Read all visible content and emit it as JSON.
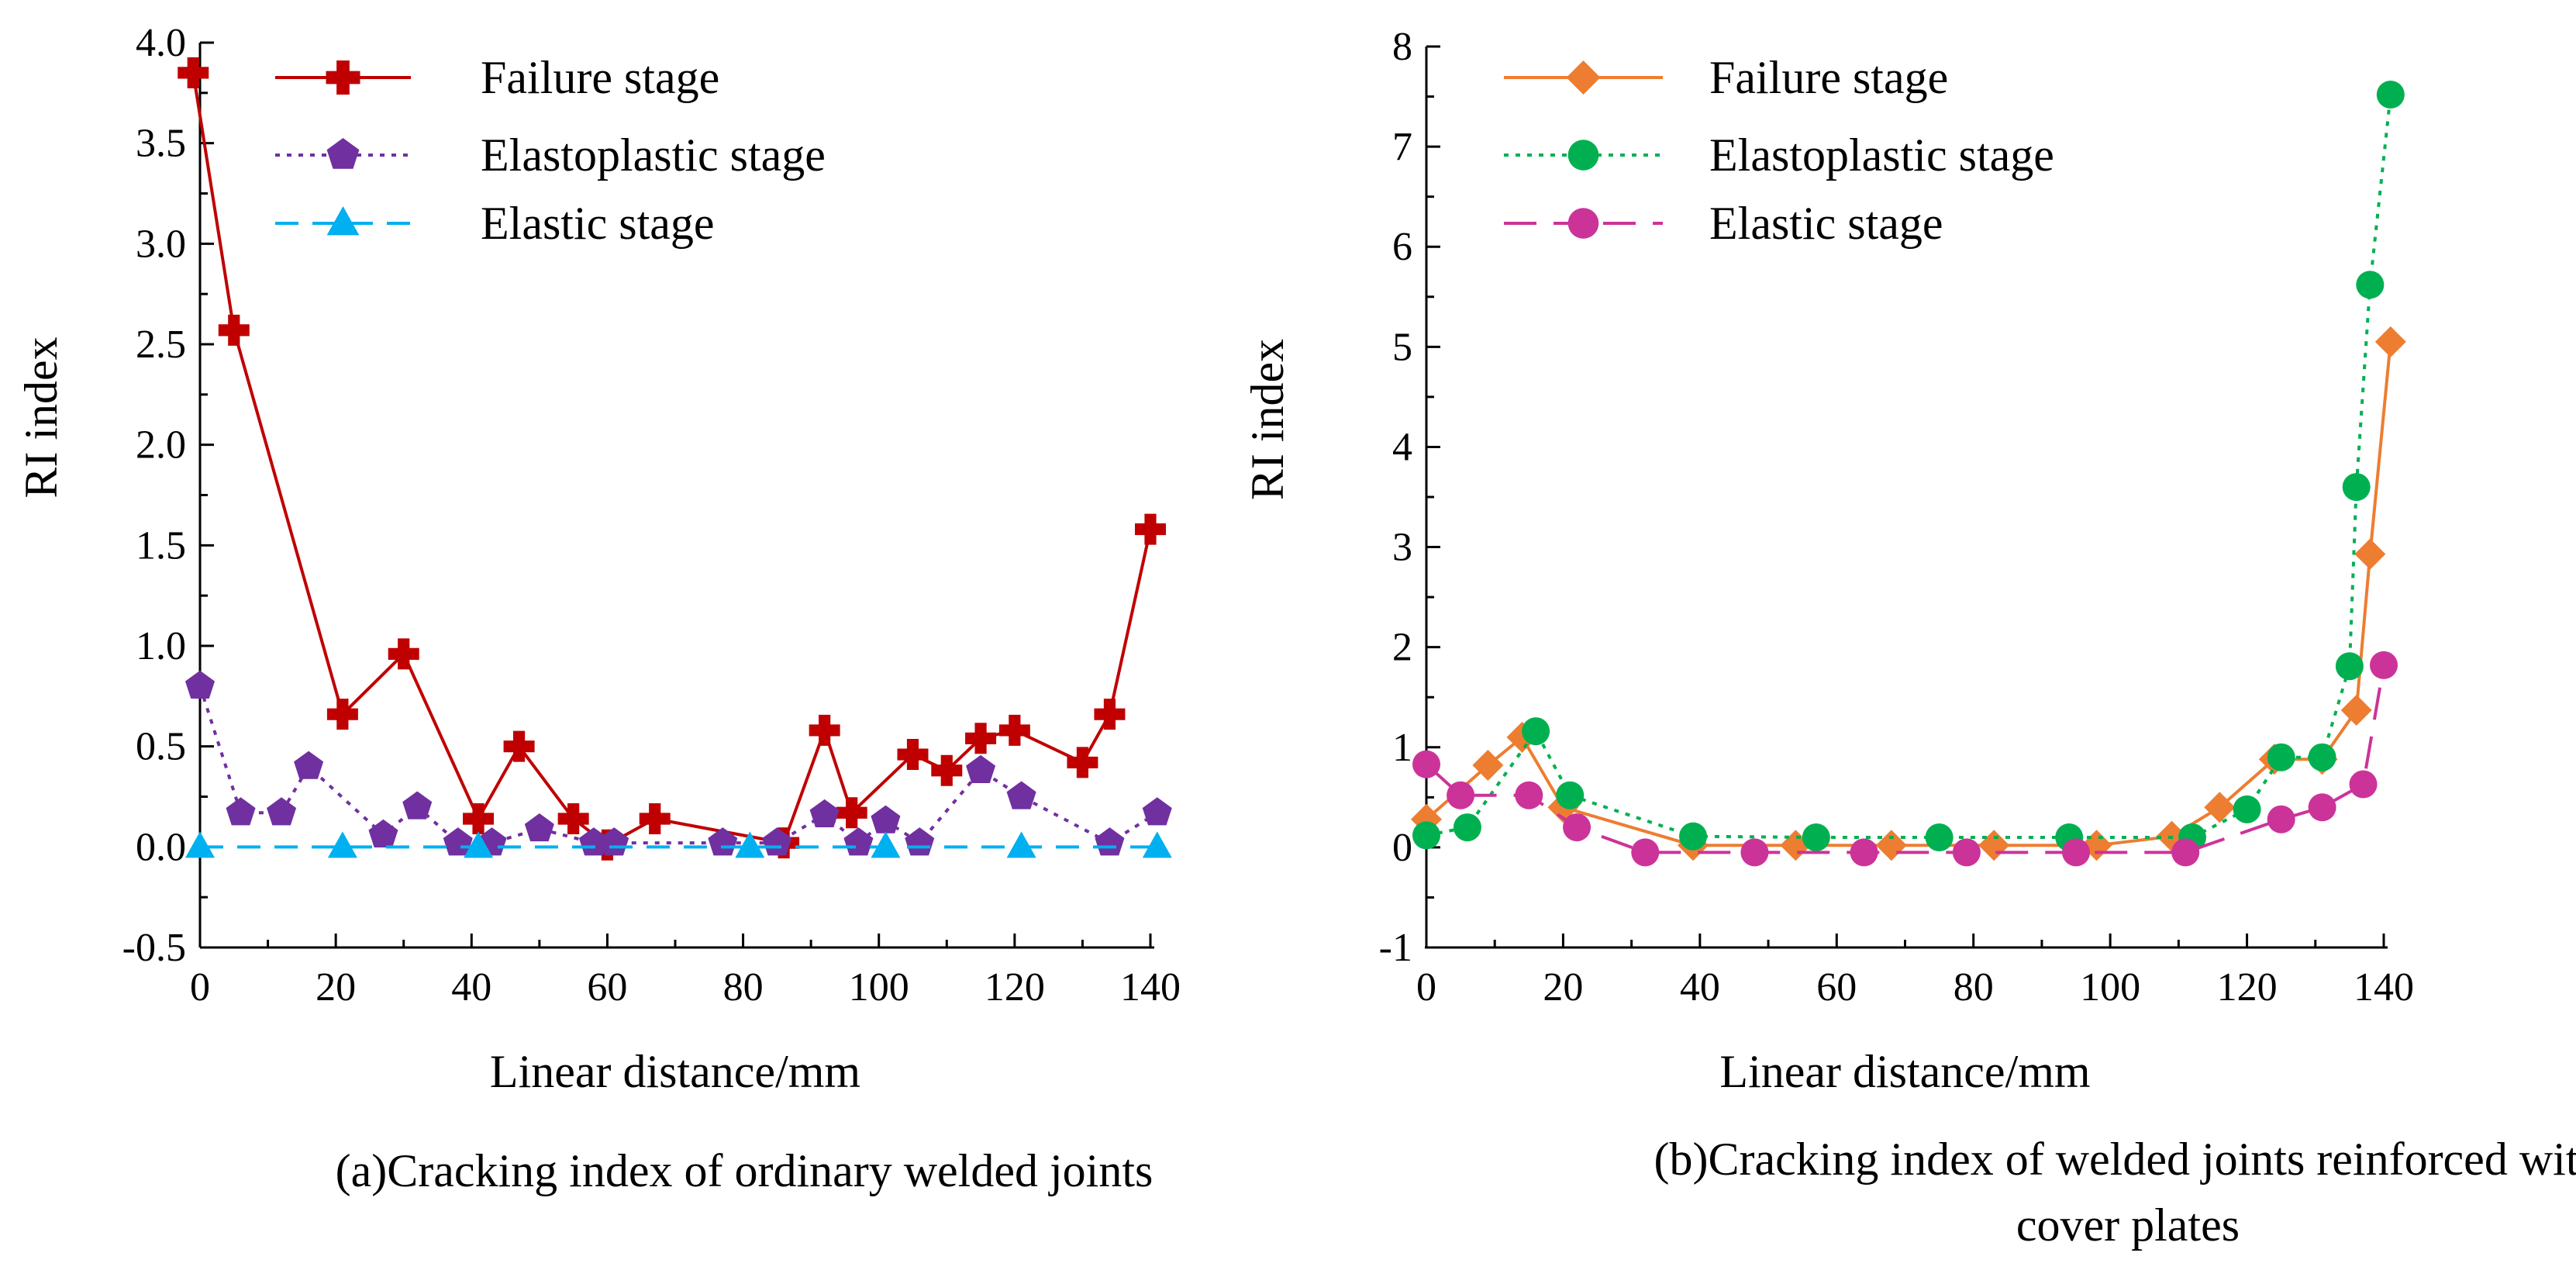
{
  "chart_data": [
    {
      "type": "line",
      "caption": "(a)Cracking index of ordinary welded joints",
      "xlabel": "Linear distance/mm",
      "ylabel": "RI index",
      "xlim": [
        0,
        140
      ],
      "ylim": [
        -0.5,
        4.0
      ],
      "xticks": [
        "0",
        "20",
        "40",
        "60",
        "80",
        "100",
        "120",
        "140"
      ],
      "yticks": [
        "-0.5",
        "0.0",
        "0.5",
        "1.0",
        "1.5",
        "2.0",
        "2.5",
        "3.0",
        "3.5",
        "4.0"
      ],
      "legend_position": "top-left",
      "series": [
        {
          "name": "Failure stage",
          "color": "#c00000",
          "dash": "solid",
          "marker": "cross",
          "x": [
            -1,
            5,
            21,
            30,
            41,
            47,
            55,
            60,
            67,
            86,
            92,
            96,
            105,
            110,
            115,
            120,
            130,
            134,
            140
          ],
          "y": [
            3.85,
            2.57,
            0.66,
            0.96,
            0.14,
            0.5,
            0.14,
            0.01,
            0.14,
            0.02,
            0.58,
            0.17,
            0.46,
            0.38,
            0.54,
            0.58,
            0.42,
            0.66,
            1.58
          ]
        },
        {
          "name": "Elastoplastic stage",
          "color": "#7030a0",
          "dash": "dotted",
          "marker": "pentagon",
          "x": [
            0,
            6,
            12,
            16,
            27,
            32,
            38,
            43,
            50,
            58,
            61,
            77,
            85,
            92,
            97,
            101,
            106,
            115,
            121,
            134,
            141
          ],
          "y": [
            0.8,
            0.17,
            0.17,
            0.4,
            0.06,
            0.2,
            0.02,
            0.02,
            0.09,
            0.02,
            0.02,
            0.02,
            0.02,
            0.16,
            0.02,
            0.13,
            0.02,
            0.38,
            0.25,
            0.02,
            0.17
          ]
        },
        {
          "name": "Elastic stage",
          "color": "#00b0f0",
          "dash": "dashed",
          "marker": "triangle",
          "x": [
            0,
            21,
            41,
            81,
            101,
            121,
            141
          ],
          "y": [
            0.0,
            0.0,
            0.0,
            0.0,
            0.0,
            0.0,
            0.0
          ]
        }
      ]
    },
    {
      "type": "line",
      "caption": "(b)Cracking index of welded joints reinforced with cover plates",
      "xlabel": "Linear distance/mm",
      "ylabel": "RI index",
      "xlim": [
        0,
        140
      ],
      "ylim": [
        -1,
        8
      ],
      "xticks": [
        "0",
        "20",
        "40",
        "60",
        "80",
        "100",
        "120",
        "140"
      ],
      "yticks": [
        "-1",
        "0",
        "1",
        "2",
        "3",
        "4",
        "5",
        "6",
        "7",
        "8"
      ],
      "legend_position": "top-left",
      "series": [
        {
          "name": "Failure stage",
          "color": "#ed7d31",
          "dash": "solid",
          "marker": "diamond",
          "x": [
            0,
            9,
            14,
            20,
            39,
            54,
            68,
            83,
            98,
            109,
            116,
            124,
            131,
            136,
            138,
            141
          ],
          "y": [
            0.28,
            0.82,
            1.1,
            0.4,
            0.02,
            0.02,
            0.02,
            0.02,
            0.02,
            0.11,
            0.4,
            0.88,
            0.88,
            1.37,
            2.93,
            5.05
          ]
        },
        {
          "name": "Elastoplastic stage",
          "color": "#00b050",
          "dash": "dotted",
          "marker": "circle",
          "x": [
            0,
            6,
            16,
            21,
            39,
            57,
            75,
            94,
            112,
            120,
            125,
            131,
            135,
            136,
            138,
            141
          ],
          "y": [
            0.12,
            0.2,
            1.16,
            0.52,
            0.11,
            0.1,
            0.1,
            0.1,
            0.1,
            0.38,
            0.9,
            0.9,
            1.81,
            3.6,
            5.62,
            7.52
          ]
        },
        {
          "name": "Elastic stage",
          "color": "#cc3399",
          "dash": "longdash",
          "marker": "circle",
          "x": [
            0,
            5,
            15,
            22,
            32,
            48,
            64,
            79,
            95,
            111,
            125,
            131,
            137,
            140
          ],
          "y": [
            0.83,
            0.52,
            0.52,
            0.2,
            -0.05,
            -0.05,
            -0.05,
            -0.05,
            -0.05,
            -0.05,
            0.28,
            0.4,
            0.63,
            1.82
          ]
        }
      ]
    }
  ]
}
